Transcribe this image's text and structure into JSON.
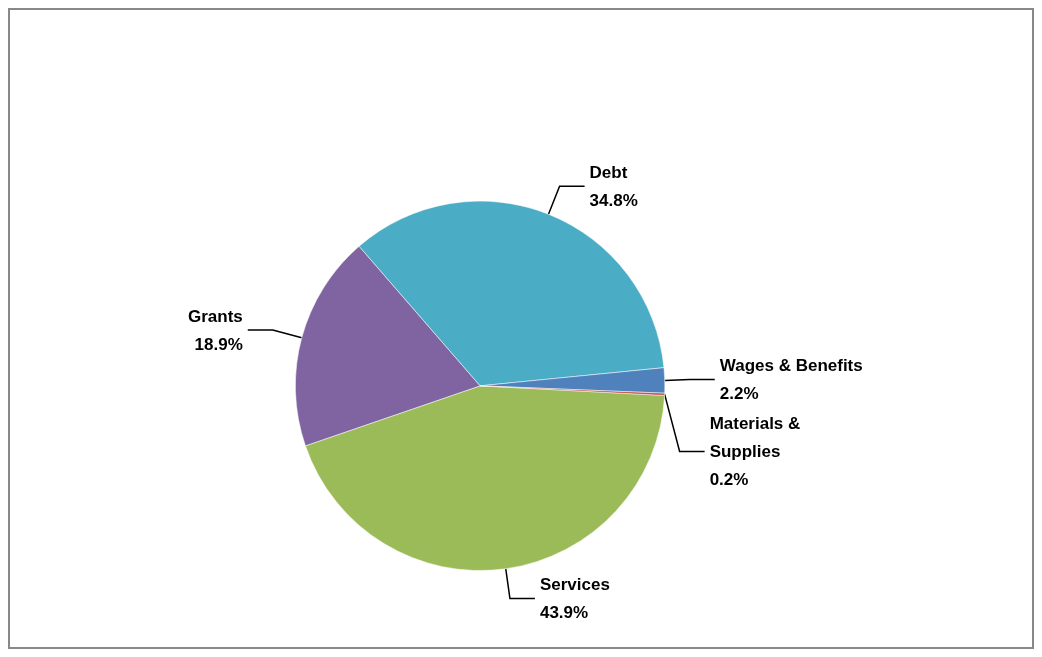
{
  "chart_data": {
    "type": "pie",
    "categories": [
      "Services",
      "Grants",
      "Debt",
      "Wages & Benefits",
      "Materials & Supplies"
    ],
    "values": [
      43.9,
      18.9,
      34.8,
      2.2,
      0.2
    ],
    "colors": [
      "#9bbb59",
      "#8064a2",
      "#4bacc6",
      "#4f81bd",
      "#c0504d"
    ],
    "value_labels": [
      "43.9%",
      "18.9%",
      "34.8%",
      "2.2%",
      "0.2%"
    ]
  }
}
